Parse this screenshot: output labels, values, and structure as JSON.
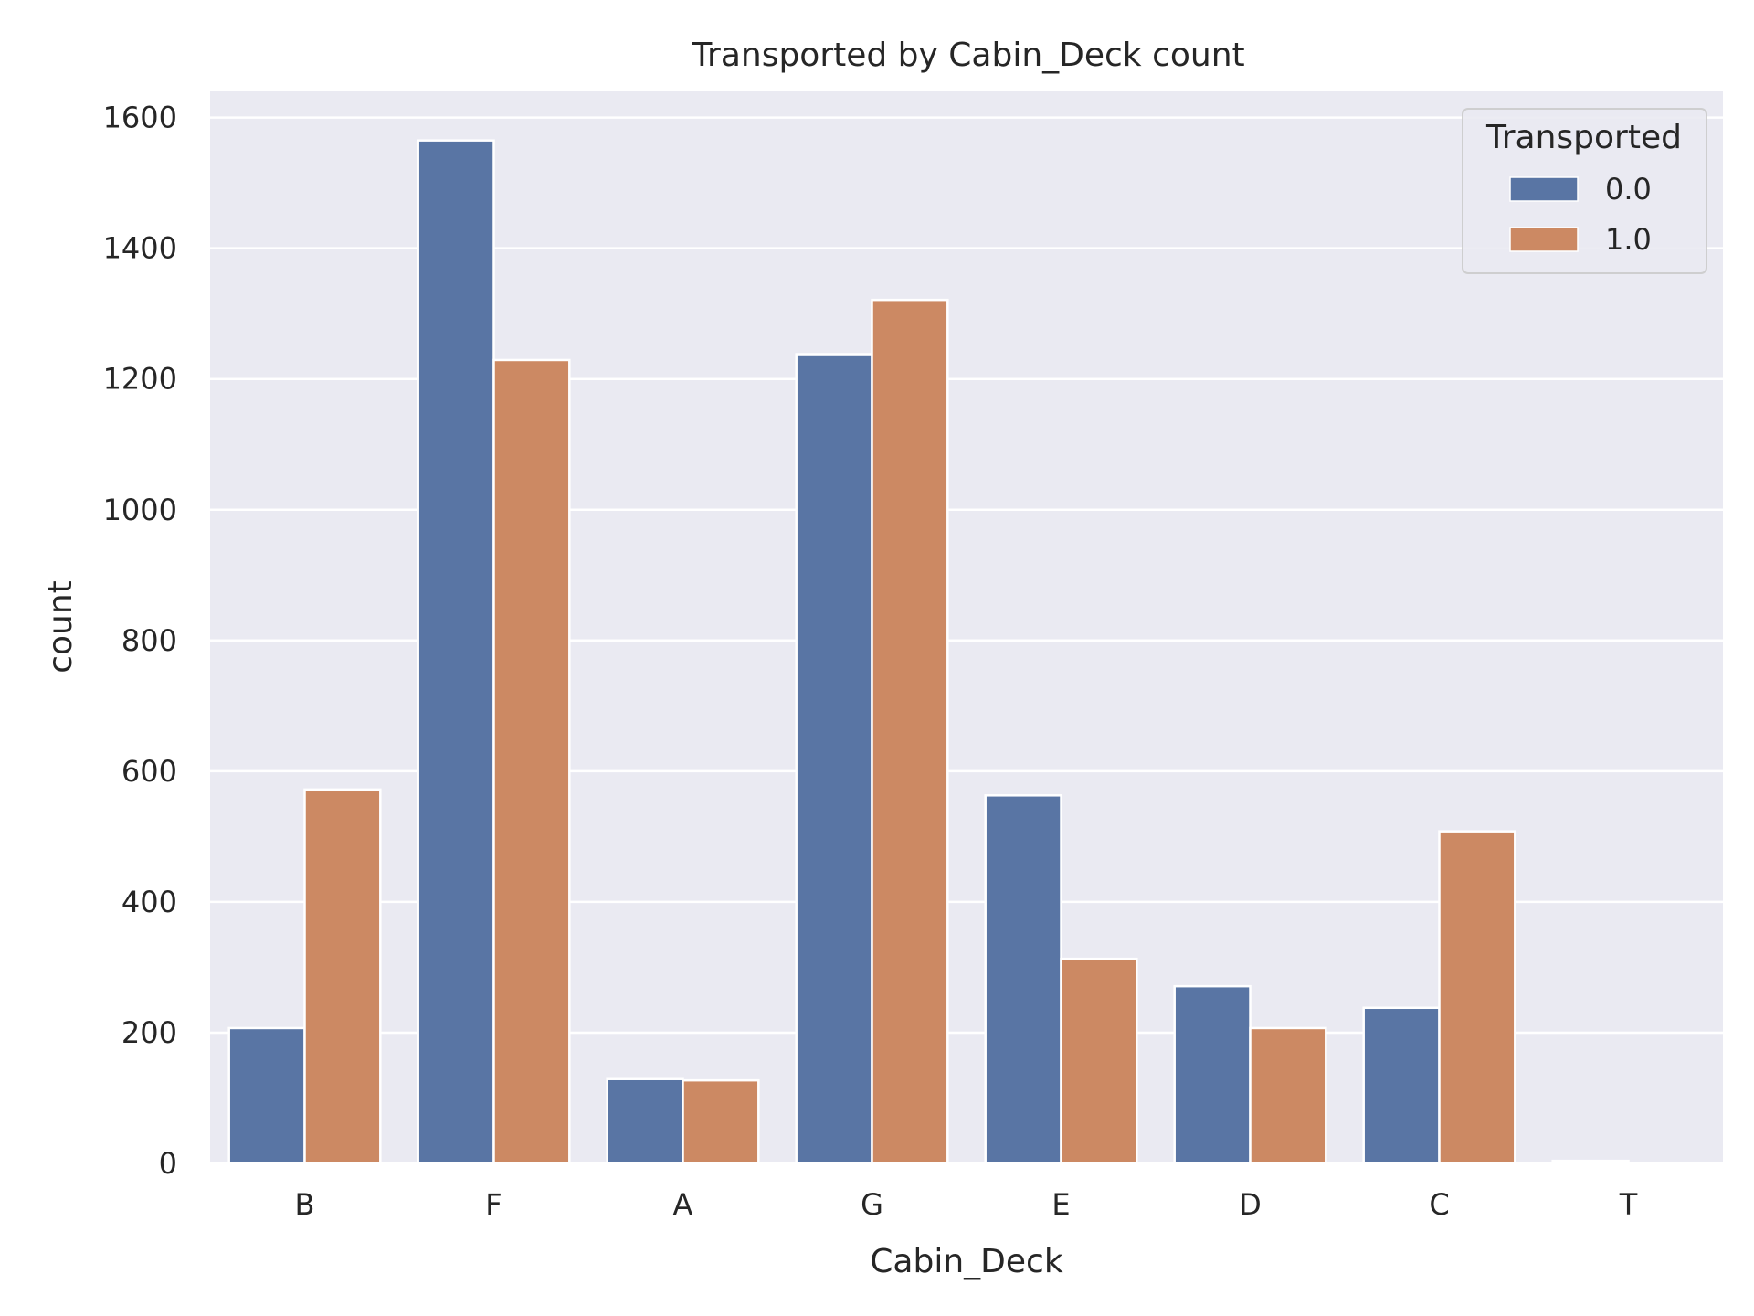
{
  "chart_data": {
    "type": "bar",
    "title": "Transported by Cabin_Deck count",
    "xlabel": "Cabin_Deck",
    "ylabel": "count",
    "categories": [
      "B",
      "F",
      "A",
      "G",
      "E",
      "D",
      "C",
      "T"
    ],
    "series": [
      {
        "name": "0.0",
        "color": "#5975a4",
        "values": [
          207,
          1565,
          129,
          1238,
          563,
          271,
          238,
          4
        ]
      },
      {
        "name": "1.0",
        "color": "#cc8963",
        "values": [
          572,
          1229,
          127,
          1321,
          313,
          207,
          508,
          1
        ]
      }
    ],
    "legend": {
      "title": "Transported",
      "placement": "top-right"
    },
    "ylim": [
      0,
      1640
    ],
    "yticks": [
      0,
      200,
      400,
      600,
      800,
      1000,
      1200,
      1400,
      1600
    ],
    "grid": true,
    "background": "#eaeaf2",
    "grid_color": "#ffffff"
  }
}
